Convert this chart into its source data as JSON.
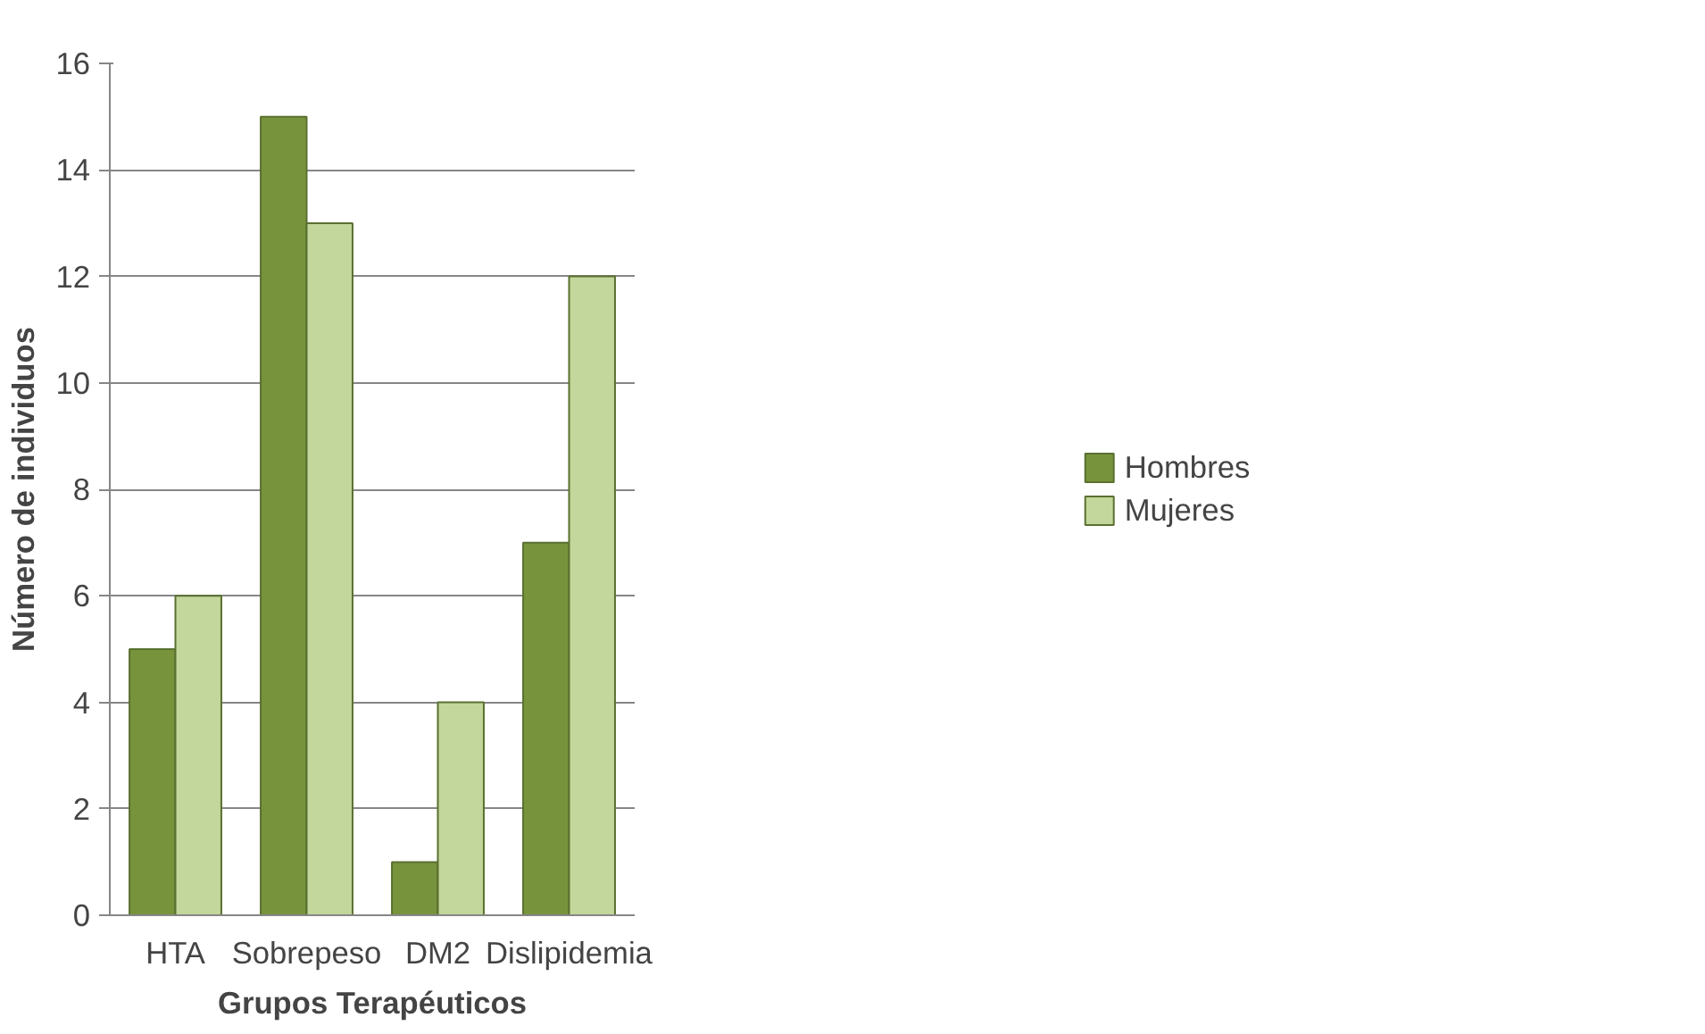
{
  "chart_data": {
    "type": "bar",
    "xlabel": "Grupos Terapéuticos",
    "ylabel": "Número de individuos",
    "categories": [
      "HTA",
      "Sobrepeso",
      "DM2",
      "Dislipidemia"
    ],
    "series": [
      {
        "name": "Hombres",
        "color": "#77933c",
        "values": [
          5,
          15,
          1,
          7
        ]
      },
      {
        "name": "Mujeres",
        "color": "#c3d69b",
        "values": [
          6,
          13,
          4,
          12
        ]
      }
    ],
    "ylim": [
      0,
      16
    ],
    "yticks": [
      0,
      2,
      4,
      6,
      8,
      10,
      12,
      14,
      16
    ],
    "grid": "y",
    "legend": "right"
  }
}
